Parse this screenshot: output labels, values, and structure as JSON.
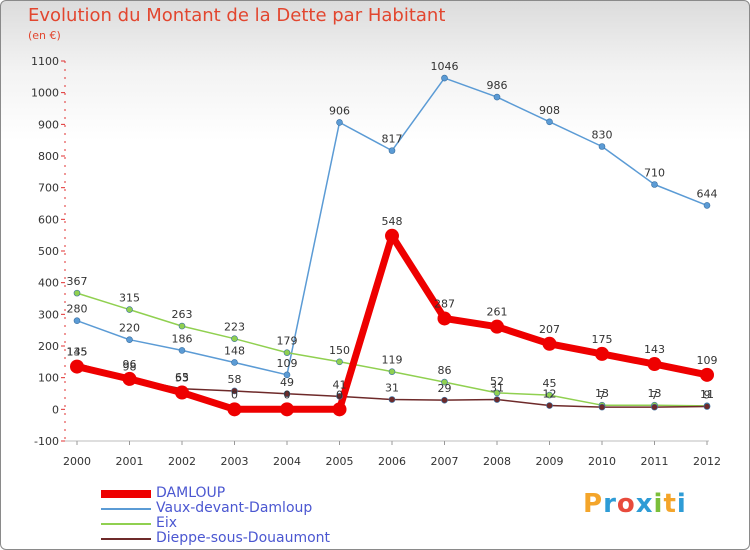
{
  "page": {
    "title": "Evolution du Montant de la Dette par Habitant",
    "subtitle": "(en €)",
    "logo_text": "Proxiti",
    "logo_colors": [
      "#f4a52a",
      "#2e9cd6",
      "#e84b3c",
      "#2e9cd6",
      "#7bbf3a",
      "#f4a52a",
      "#2e9cd6"
    ]
  },
  "chart_data": {
    "type": "line",
    "title": "Evolution du Montant de la Dette par Habitant",
    "subtitle": "(en €)",
    "x": [
      "2000",
      "2001",
      "2002",
      "2003",
      "2004",
      "2005",
      "2006",
      "2007",
      "2008",
      "2009",
      "2010",
      "2011",
      "2012"
    ],
    "ylim": [
      -100,
      1100
    ],
    "yticks": [
      -100,
      0,
      100,
      200,
      300,
      400,
      500,
      600,
      700,
      800,
      900,
      1000,
      1100
    ],
    "grid": false,
    "legend_position": "bottom-left",
    "series": [
      {
        "name": "DAMLOUP",
        "color": "#ee0000",
        "width": 7,
        "values": [
          135,
          96,
          53,
          0,
          0,
          0,
          548,
          287,
          261,
          207,
          175,
          143,
          109
        ],
        "labels": [
          "135",
          "96",
          "53",
          "0",
          "0",
          "0",
          "548",
          "287",
          "261",
          "207",
          "175",
          "143",
          "109"
        ]
      },
      {
        "name": "Vaux-devant-Damloup",
        "color": "#5b9bd5",
        "width": 1.5,
        "values": [
          280,
          220,
          186,
          148,
          109,
          906,
          817,
          1046,
          986,
          908,
          830,
          710,
          644
        ],
        "labels": [
          "280",
          "220",
          "186",
          "148",
          "109",
          "906",
          "817",
          "1046",
          "986",
          "908",
          "830",
          "710",
          "644"
        ]
      },
      {
        "name": "Eix",
        "color": "#90d050",
        "width": 1.5,
        "values": [
          367,
          315,
          263,
          223,
          179,
          150,
          119,
          86,
          52,
          45,
          13,
          13,
          11
        ],
        "labels": [
          "367",
          "315",
          "263",
          "223",
          "179",
          "150",
          "119",
          "86",
          "52",
          "45",
          "13",
          "13",
          "11"
        ]
      },
      {
        "name": "Dieppe-sous-Douaumont",
        "color": "#6e2a2a",
        "width": 1.5,
        "values": [
          145,
          98,
          65,
          58,
          49,
          41,
          31,
          29,
          31,
          12,
          7,
          7,
          9
        ],
        "labels": [
          "145",
          "98",
          "65",
          "58",
          "49",
          "41",
          "31",
          "29",
          "31",
          "12",
          "7",
          "7",
          "9"
        ]
      }
    ]
  }
}
